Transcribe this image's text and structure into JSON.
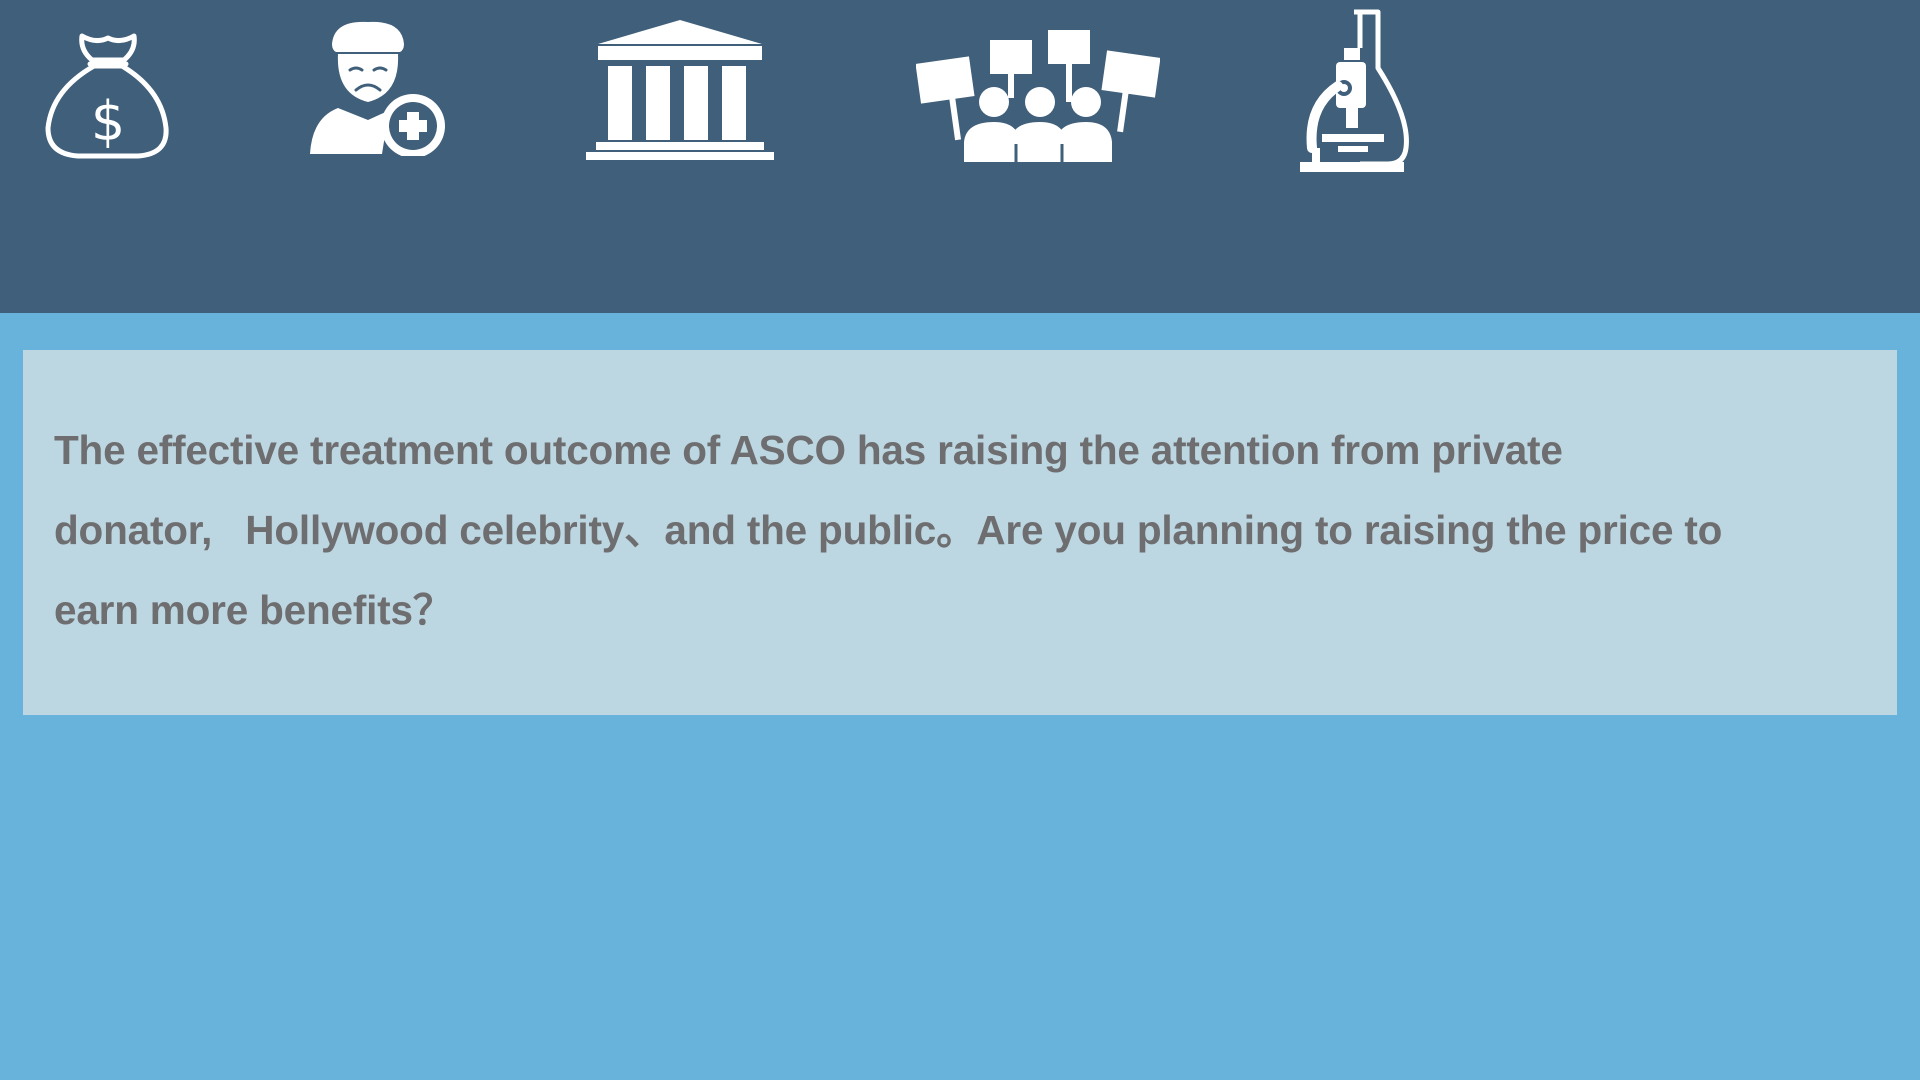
{
  "slide": {
    "background_color": "#67b3db",
    "header_color": "#405f7a",
    "text_box_color": "#bcd7e2",
    "text_color": "#6e6e70",
    "icons": [
      {
        "name": "money-bag-icon"
      },
      {
        "name": "patient-icon"
      },
      {
        "name": "government-building-icon"
      },
      {
        "name": "public-crowd-icon"
      },
      {
        "name": "laboratory-icon"
      }
    ],
    "question": {
      "line1": "The effective treatment outcome of ASCO has raising the attention from private",
      "line2": "donator,   Hollywood celebrity、and the public。Are you planning to raising the price to",
      "line3": "earn more benefits？"
    }
  }
}
